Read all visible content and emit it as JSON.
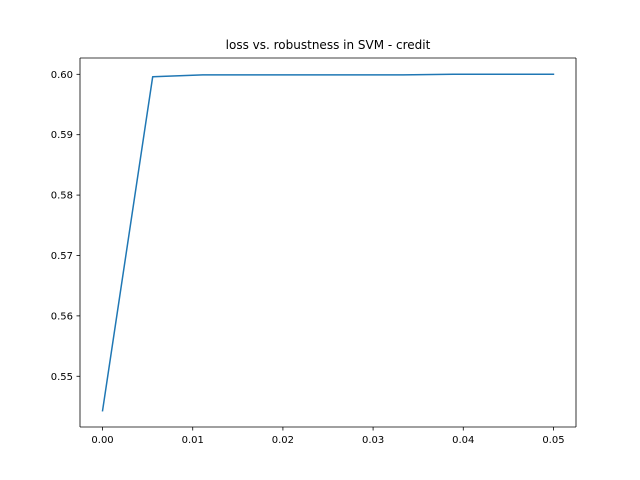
{
  "chart_data": {
    "type": "line",
    "title": "loss vs. robustness in SVM - credit",
    "xlabel": "",
    "ylabel": "",
    "xlim": [
      -0.0025,
      0.0525
    ],
    "ylim": [
      0.5416,
      0.6027
    ],
    "grid": false,
    "x_ticks": [
      0.0,
      0.01,
      0.02,
      0.03,
      0.04,
      0.05
    ],
    "x_tick_labels": [
      "0.00",
      "0.01",
      "0.02",
      "0.03",
      "0.04",
      "0.05"
    ],
    "y_ticks": [
      0.55,
      0.56,
      0.57,
      0.58,
      0.59,
      0.6
    ],
    "y_tick_labels": [
      "0.55",
      "0.56",
      "0.57",
      "0.58",
      "0.59",
      "0.60"
    ],
    "series": [
      {
        "color": "#1f77b4",
        "x": [
          0.0,
          0.00556,
          0.01111,
          0.01667,
          0.02222,
          0.02778,
          0.03333,
          0.03889,
          0.04444,
          0.05
        ],
        "y": [
          0.5443,
          0.5996,
          0.5999,
          0.5999,
          0.5999,
          0.5999,
          0.5999,
          0.6,
          0.6,
          0.6
        ]
      }
    ]
  }
}
